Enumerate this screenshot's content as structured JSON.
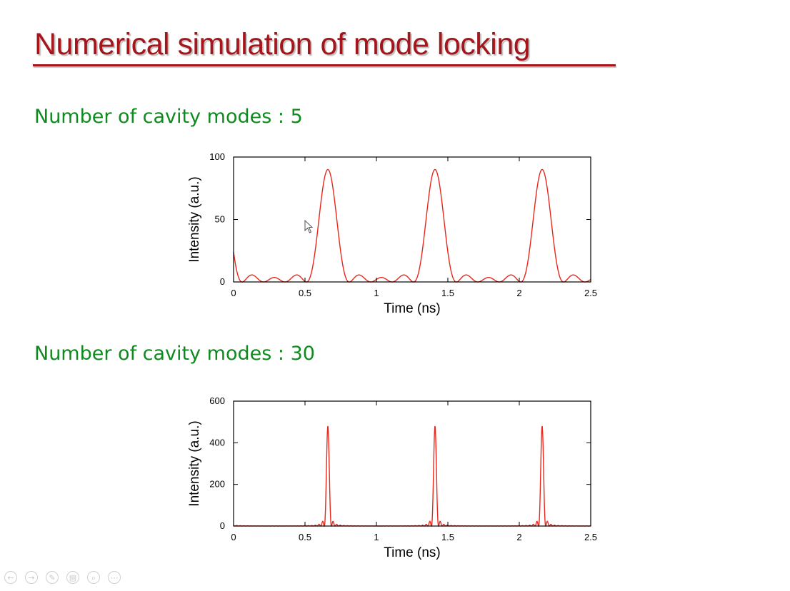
{
  "slide": {
    "title": "Numerical simulation of mode locking",
    "heading1": "Number of cavity modes : 5",
    "heading2": "Number of cavity modes : 30"
  },
  "colors": {
    "title": "#a4161b",
    "heading": "#0f8a1f",
    "trace": "#e8281c"
  },
  "controls": [
    {
      "name": "prev-icon",
      "glyph": "←"
    },
    {
      "name": "next-icon",
      "glyph": "→"
    },
    {
      "name": "pen-icon",
      "glyph": "✎"
    },
    {
      "name": "slides-icon",
      "glyph": "▤"
    },
    {
      "name": "zoom-icon",
      "glyph": "⌕"
    },
    {
      "name": "more-icon",
      "glyph": "⋯"
    }
  ],
  "chart_data": [
    {
      "type": "line",
      "title": "",
      "xlabel": "Time (ns)",
      "ylabel": "Intensity (a.u.)",
      "xlim": [
        0,
        2.5
      ],
      "ylim": [
        0,
        100
      ],
      "xticks": [
        0,
        0.5,
        1,
        1.5,
        2,
        2.5
      ],
      "xtick_labels": [
        "0",
        "0.5",
        "1",
        "1.5",
        "2",
        "2.5"
      ],
      "yticks": [
        0,
        50,
        100
      ],
      "ytick_labels": [
        "0",
        "50",
        "100"
      ],
      "series": [
        {
          "name": "5 modes",
          "model": "mode_locked_sum",
          "modes": 5,
          "period_ns": 0.75,
          "peak_times_ns": [
            0.66,
            1.41,
            2.16
          ],
          "peak_intensity": 90
        }
      ]
    },
    {
      "type": "line",
      "title": "",
      "xlabel": "Time (ns)",
      "ylabel": "Intensity (a.u.)",
      "xlim": [
        0,
        2.5
      ],
      "ylim": [
        0,
        600
      ],
      "xticks": [
        0,
        0.5,
        1,
        1.5,
        2,
        2.5
      ],
      "xtick_labels": [
        "0",
        "0.5",
        "1",
        "1.5",
        "2",
        "2.5"
      ],
      "yticks": [
        0,
        200,
        400,
        600
      ],
      "ytick_labels": [
        "0",
        "200",
        "400",
        "600"
      ],
      "series": [
        {
          "name": "30 modes",
          "model": "mode_locked_sum",
          "modes": 30,
          "period_ns": 0.75,
          "peak_times_ns": [
            0.66,
            1.41,
            2.16
          ],
          "peak_intensity": 480
        }
      ]
    }
  ]
}
